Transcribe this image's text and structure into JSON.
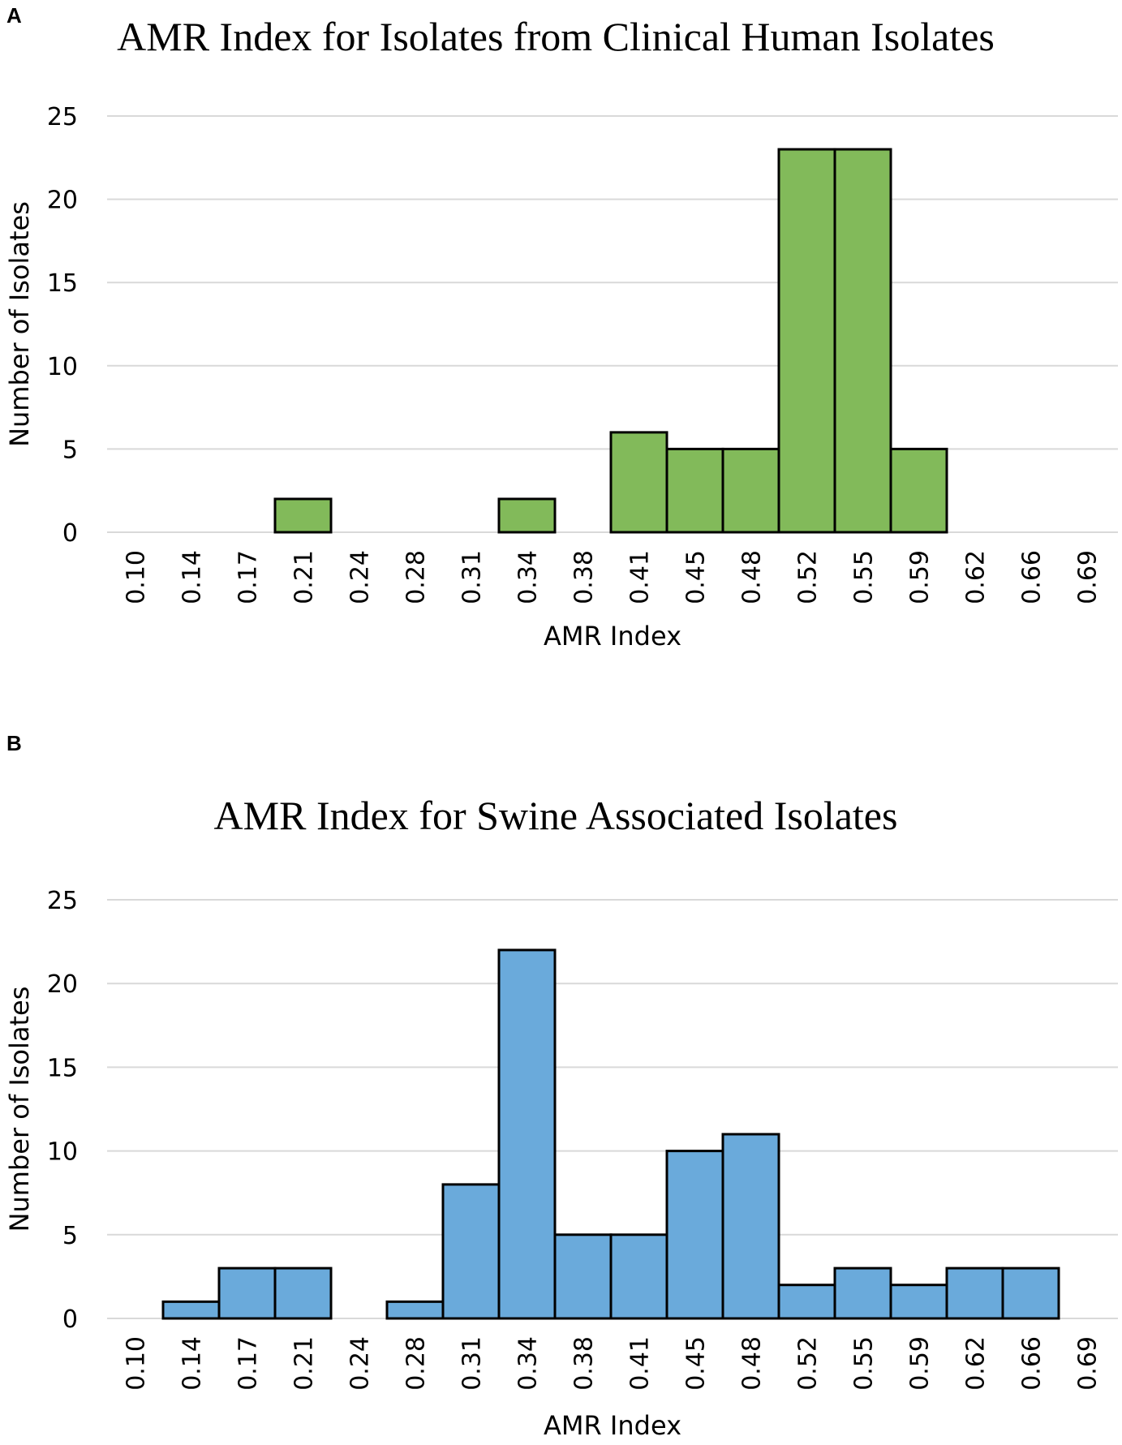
{
  "chart_data": [
    {
      "panel": "A",
      "type": "bar",
      "title": "AMR Index for Isolates from Clinical Human Isolates",
      "xlabel": "AMR Index",
      "ylabel": "Number of Isolates",
      "categories": [
        "0.10",
        "0.14",
        "0.17",
        "0.21",
        "0.24",
        "0.28",
        "0.31",
        "0.34",
        "0.38",
        "0.41",
        "0.45",
        "0.48",
        "0.52",
        "0.55",
        "0.59",
        "0.62",
        "0.66",
        "0.69"
      ],
      "values": [
        0,
        0,
        0,
        2,
        0,
        0,
        0,
        2,
        0,
        6,
        5,
        5,
        23,
        23,
        5,
        0,
        0,
        0
      ],
      "yticks": [
        "0",
        "5",
        "10",
        "15",
        "20",
        "25"
      ],
      "ylim": [
        0,
        25
      ],
      "grid": true,
      "color": "#82ba5a"
    },
    {
      "panel": "B",
      "type": "bar",
      "title": "AMR Index for Swine Associated Isolates",
      "xlabel": "AMR Index",
      "ylabel": "Number of Isolates",
      "categories": [
        "0.10",
        "0.14",
        "0.17",
        "0.21",
        "0.24",
        "0.28",
        "0.31",
        "0.34",
        "0.38",
        "0.41",
        "0.45",
        "0.48",
        "0.52",
        "0.55",
        "0.59",
        "0.62",
        "0.66",
        "0.69"
      ],
      "values": [
        0,
        1,
        3,
        3,
        0,
        1,
        8,
        22,
        5,
        5,
        10,
        11,
        2,
        3,
        2,
        3,
        3,
        0
      ],
      "yticks": [
        "0",
        "5",
        "10",
        "15",
        "20",
        "25"
      ],
      "ylim": [
        0,
        25
      ],
      "grid": true,
      "color": "#6aaadb"
    }
  ]
}
